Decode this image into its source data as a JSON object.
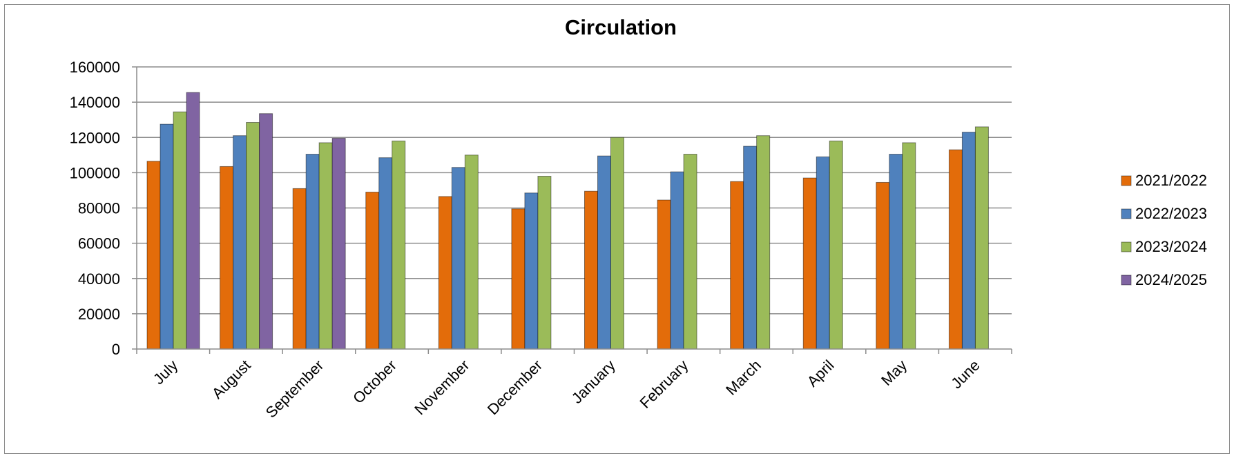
{
  "chart_data": {
    "type": "bar",
    "title": "Circulation",
    "xlabel": "",
    "ylabel": "",
    "ylim": [
      0,
      160000
    ],
    "yticks": [
      0,
      20000,
      40000,
      60000,
      80000,
      100000,
      120000,
      140000,
      160000
    ],
    "grid": true,
    "legend_position": "right",
    "categories": [
      "July",
      "August",
      "September",
      "October",
      "November",
      "December",
      "January",
      "February",
      "March",
      "April",
      "May",
      "June"
    ],
    "series": [
      {
        "name": "2021/2022",
        "color": "#E36C0A",
        "values": [
          106500,
          103500,
          91000,
          89000,
          86500,
          79500,
          89500,
          84500,
          95000,
          97000,
          94500,
          113000
        ]
      },
      {
        "name": "2022/2023",
        "color": "#4F81BD",
        "values": [
          127500,
          121000,
          110500,
          108500,
          103000,
          88500,
          109500,
          100500,
          115000,
          109000,
          110500,
          123000
        ]
      },
      {
        "name": "2023/2024",
        "color": "#9BBB59",
        "values": [
          134500,
          128500,
          117000,
          118000,
          110000,
          98000,
          120000,
          110500,
          121000,
          118000,
          117000,
          126000
        ]
      },
      {
        "name": "2024/2025",
        "color": "#8064A2",
        "values": [
          145500,
          133500,
          119500,
          null,
          null,
          null,
          null,
          null,
          null,
          null,
          null,
          null
        ]
      }
    ]
  }
}
